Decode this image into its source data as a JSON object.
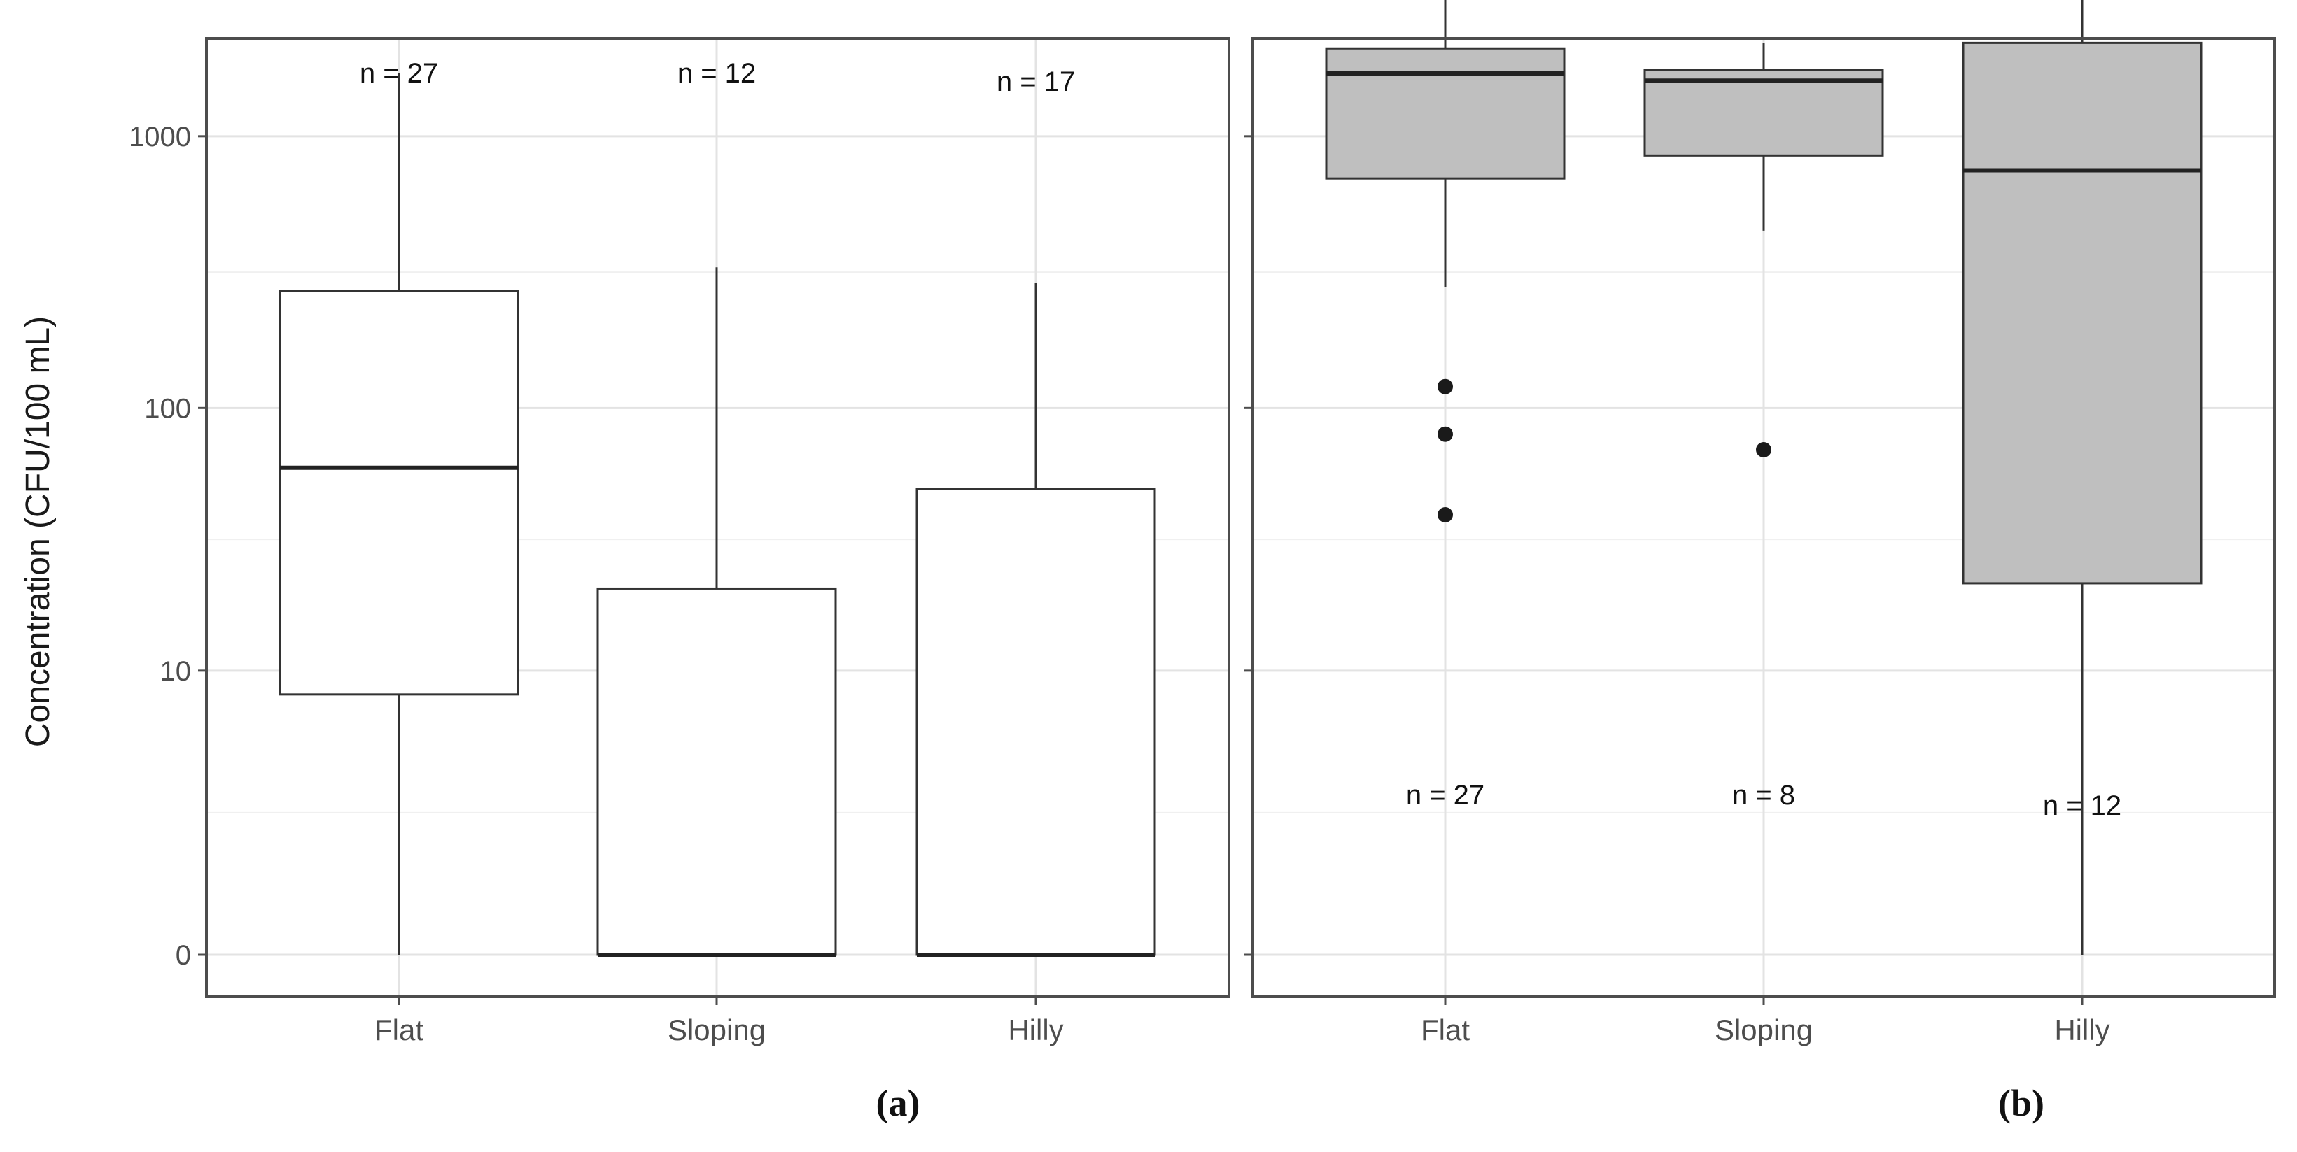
{
  "figure": {
    "ylabel": "Concentration (CFU/100 mL)"
  },
  "chart_data": [
    {
      "type": "box",
      "panel_label": "(a)",
      "ylabel": "Concentration (CFU/100 mL)",
      "y_scale": "log10(x+1)",
      "y_ticks": [
        "0",
        "10",
        "100",
        "1000"
      ],
      "y_tick_values": [
        0,
        10,
        100,
        1000
      ],
      "grid": true,
      "fill_color": "#ffffff",
      "categories": [
        "Flat",
        "Sloping",
        "Hilly"
      ],
      "boxes": [
        {
          "category": "Flat",
          "n_label": "n = 27",
          "min": 0,
          "q1": 8,
          "median": 60,
          "q3": 270,
          "max": 1700,
          "outliers": []
        },
        {
          "category": "Sloping",
          "n_label": "n = 12",
          "min": 0,
          "q1": 0,
          "median": 0,
          "q3": 21,
          "max": 330,
          "outliers": []
        },
        {
          "category": "Hilly",
          "n_label": "n = 17",
          "min": 0,
          "q1": 0,
          "median": 0,
          "q3": 50,
          "max": 290,
          "outliers": []
        }
      ]
    },
    {
      "type": "box",
      "panel_label": "(b)",
      "y_scale": "log10(x+1)",
      "y_ticks": [
        "0",
        "10",
        "100",
        "1000"
      ],
      "y_tick_values": [
        0,
        10,
        100,
        1000
      ],
      "grid": true,
      "fill_color": "#bfbfbf",
      "categories": [
        "Flat",
        "Sloping",
        "Hilly"
      ],
      "boxes": [
        {
          "category": "Flat",
          "n_label": "n = 27",
          "min": 280,
          "q1": 700,
          "median": 1700,
          "q3": 2100,
          "max": 3400,
          "outliers": [
            120,
            80,
            40
          ]
        },
        {
          "category": "Sloping",
          "n_label": "n = 8",
          "min": 450,
          "q1": 850,
          "median": 1600,
          "q3": 1750,
          "max": 2200,
          "outliers": [
            70
          ]
        },
        {
          "category": "Hilly",
          "n_label": "n = 12",
          "min": 0,
          "q1": 22,
          "median": 750,
          "q3": 2200,
          "max": 3350,
          "outliers": []
        }
      ]
    }
  ]
}
